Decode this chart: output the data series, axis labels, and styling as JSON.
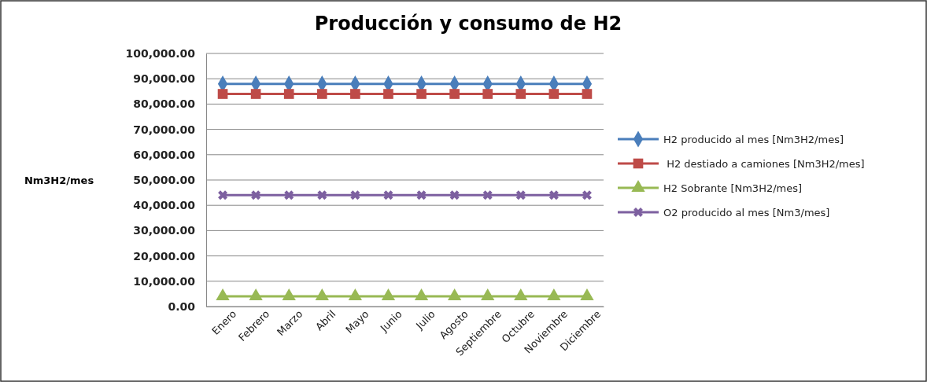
{
  "chart_data": {
    "type": "line",
    "title": "Producción y consumo de H2",
    "ylabel": "Nm3H2/mes",
    "categories": [
      "Enero",
      "Febrero",
      "Marzo",
      "Abril",
      "Mayo",
      "Junio",
      "Julio",
      "Agosto",
      "Septiembre",
      "Octubre",
      "Noviembre",
      "Diciembre"
    ],
    "series": [
      {
        "name": "H2 producido al mes [Nm3H2/mes]",
        "color": "#4a7ebb",
        "marker": "diamond",
        "values": [
          88000,
          88000,
          88000,
          88000,
          88000,
          88000,
          88000,
          88000,
          88000,
          88000,
          88000,
          88000
        ]
      },
      {
        "name": " H2 destiado a camiones [Nm3H2/mes]",
        "color": "#be4b48",
        "marker": "square",
        "values": [
          84000,
          84000,
          84000,
          84000,
          84000,
          84000,
          84000,
          84000,
          84000,
          84000,
          84000,
          84000
        ]
      },
      {
        "name": "H2 Sobrante [Nm3H2/mes]",
        "color": "#98b954",
        "marker": "triangle",
        "values": [
          4000,
          4000,
          4000,
          4000,
          4000,
          4000,
          4000,
          4000,
          4000,
          4000,
          4000,
          4000
        ]
      },
      {
        "name": "O2 producido al mes [Nm3/mes]",
        "color": "#7d60a0",
        "marker": "cross",
        "values": [
          44000,
          44000,
          44000,
          44000,
          44000,
          44000,
          44000,
          44000,
          44000,
          44000,
          44000,
          44000
        ]
      }
    ],
    "ylim": [
      0,
      100000
    ],
    "yticks": [
      {
        "value": 0,
        "label": "0.00"
      },
      {
        "value": 10000,
        "label": "10,000.00"
      },
      {
        "value": 20000,
        "label": "20,000.00"
      },
      {
        "value": 30000,
        "label": "30,000.00"
      },
      {
        "value": 40000,
        "label": "40,000.00"
      },
      {
        "value": 50000,
        "label": "50,000.00"
      },
      {
        "value": 60000,
        "label": "60,000.00"
      },
      {
        "value": 70000,
        "label": "70,000.00"
      },
      {
        "value": 80000,
        "label": "80,000.00"
      },
      {
        "value": 90000,
        "label": "90,000.00"
      },
      {
        "value": 100000,
        "label": "100,000.00"
      }
    ],
    "grid": "y",
    "legend": "right",
    "line_style": "solid"
  }
}
